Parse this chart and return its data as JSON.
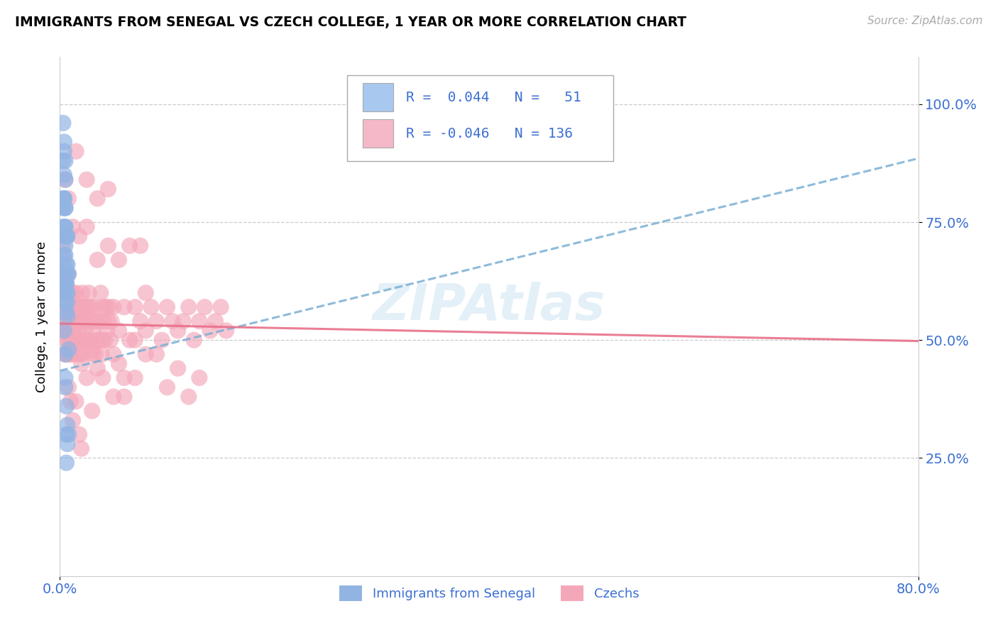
{
  "title": "IMMIGRANTS FROM SENEGAL VS CZECH COLLEGE, 1 YEAR OR MORE CORRELATION CHART",
  "source_text": "Source: ZipAtlas.com",
  "ylabel": "College, 1 year or more",
  "xticklabels": [
    "0.0%",
    "80.0%"
  ],
  "yticklabels_right": [
    "100.0%",
    "75.0%",
    "50.0%",
    "25.0%"
  ],
  "xlim": [
    0.0,
    0.8
  ],
  "ylim": [
    0.0,
    1.1
  ],
  "ytick_positions": [
    1.0,
    0.75,
    0.5,
    0.25
  ],
  "grid_yticks": [
    1.0,
    0.75,
    0.5,
    0.25
  ],
  "blue_color": "#92b4e3",
  "pink_color": "#f4a7b9",
  "trend_blue_color": "#7aafd4",
  "trend_pink_color": "#e8708a",
  "legend_color": "#3c6fd1",
  "blue_trend_x": [
    0.0,
    0.8
  ],
  "blue_trend_y": [
    0.435,
    0.885
  ],
  "pink_trend_x": [
    0.0,
    0.8
  ],
  "pink_trend_y": [
    0.535,
    0.498
  ],
  "blue_scatter": [
    [
      0.003,
      0.88
    ],
    [
      0.003,
      0.8
    ],
    [
      0.003,
      0.78
    ],
    [
      0.003,
      0.74
    ],
    [
      0.004,
      0.92
    ],
    [
      0.004,
      0.85
    ],
    [
      0.004,
      0.8
    ],
    [
      0.004,
      0.72
    ],
    [
      0.004,
      0.68
    ],
    [
      0.004,
      0.62
    ],
    [
      0.005,
      0.7
    ],
    [
      0.005,
      0.65
    ],
    [
      0.005,
      0.74
    ],
    [
      0.005,
      0.78
    ],
    [
      0.005,
      0.62
    ],
    [
      0.005,
      0.6
    ],
    [
      0.005,
      0.58
    ],
    [
      0.005,
      0.74
    ],
    [
      0.005,
      0.68
    ],
    [
      0.006,
      0.62
    ],
    [
      0.006,
      0.6
    ],
    [
      0.006,
      0.66
    ],
    [
      0.006,
      0.56
    ],
    [
      0.006,
      0.64
    ],
    [
      0.006,
      0.72
    ],
    [
      0.007,
      0.72
    ],
    [
      0.007,
      0.64
    ],
    [
      0.007,
      0.6
    ],
    [
      0.007,
      0.58
    ],
    [
      0.007,
      0.55
    ],
    [
      0.008,
      0.48
    ],
    [
      0.004,
      0.52
    ],
    [
      0.005,
      0.47
    ],
    [
      0.005,
      0.42
    ],
    [
      0.005,
      0.4
    ],
    [
      0.006,
      0.36
    ],
    [
      0.006,
      0.3
    ],
    [
      0.006,
      0.24
    ],
    [
      0.007,
      0.28
    ],
    [
      0.007,
      0.32
    ],
    [
      0.008,
      0.3
    ],
    [
      0.003,
      0.96
    ],
    [
      0.004,
      0.9
    ],
    [
      0.004,
      0.8
    ],
    [
      0.005,
      0.84
    ],
    [
      0.005,
      0.78
    ],
    [
      0.005,
      0.88
    ],
    [
      0.006,
      0.72
    ],
    [
      0.006,
      0.62
    ],
    [
      0.007,
      0.66
    ],
    [
      0.008,
      0.64
    ]
  ],
  "pink_scatter": [
    [
      0.003,
      0.7
    ],
    [
      0.003,
      0.64
    ],
    [
      0.003,
      0.6
    ],
    [
      0.004,
      0.58
    ],
    [
      0.004,
      0.72
    ],
    [
      0.004,
      0.67
    ],
    [
      0.004,
      0.62
    ],
    [
      0.005,
      0.58
    ],
    [
      0.005,
      0.52
    ],
    [
      0.005,
      0.6
    ],
    [
      0.005,
      0.64
    ],
    [
      0.005,
      0.52
    ],
    [
      0.005,
      0.47
    ],
    [
      0.006,
      0.57
    ],
    [
      0.006,
      0.5
    ],
    [
      0.006,
      0.62
    ],
    [
      0.006,
      0.54
    ],
    [
      0.006,
      0.47
    ],
    [
      0.007,
      0.6
    ],
    [
      0.007,
      0.52
    ],
    [
      0.007,
      0.57
    ],
    [
      0.007,
      0.5
    ],
    [
      0.008,
      0.64
    ],
    [
      0.008,
      0.54
    ],
    [
      0.008,
      0.6
    ],
    [
      0.008,
      0.47
    ],
    [
      0.009,
      0.57
    ],
    [
      0.009,
      0.5
    ],
    [
      0.009,
      0.6
    ],
    [
      0.009,
      0.52
    ],
    [
      0.01,
      0.54
    ],
    [
      0.01,
      0.57
    ],
    [
      0.01,
      0.47
    ],
    [
      0.011,
      0.52
    ],
    [
      0.011,
      0.57
    ],
    [
      0.011,
      0.5
    ],
    [
      0.012,
      0.54
    ],
    [
      0.012,
      0.6
    ],
    [
      0.012,
      0.47
    ],
    [
      0.013,
      0.57
    ],
    [
      0.013,
      0.52
    ],
    [
      0.014,
      0.57
    ],
    [
      0.014,
      0.5
    ],
    [
      0.014,
      0.54
    ],
    [
      0.015,
      0.6
    ],
    [
      0.015,
      0.5
    ],
    [
      0.016,
      0.57
    ],
    [
      0.016,
      0.54
    ],
    [
      0.017,
      0.47
    ],
    [
      0.017,
      0.52
    ],
    [
      0.018,
      0.57
    ],
    [
      0.018,
      0.47
    ],
    [
      0.019,
      0.54
    ],
    [
      0.019,
      0.57
    ],
    [
      0.02,
      0.5
    ],
    [
      0.02,
      0.54
    ],
    [
      0.021,
      0.6
    ],
    [
      0.021,
      0.47
    ],
    [
      0.022,
      0.57
    ],
    [
      0.022,
      0.54
    ],
    [
      0.023,
      0.5
    ],
    [
      0.023,
      0.57
    ],
    [
      0.024,
      0.52
    ],
    [
      0.025,
      0.54
    ],
    [
      0.025,
      0.5
    ],
    [
      0.026,
      0.57
    ],
    [
      0.027,
      0.6
    ],
    [
      0.028,
      0.5
    ],
    [
      0.029,
      0.57
    ],
    [
      0.03,
      0.54
    ],
    [
      0.03,
      0.47
    ],
    [
      0.031,
      0.52
    ],
    [
      0.032,
      0.57
    ],
    [
      0.033,
      0.47
    ],
    [
      0.034,
      0.54
    ],
    [
      0.035,
      0.5
    ],
    [
      0.035,
      0.44
    ],
    [
      0.036,
      0.5
    ],
    [
      0.037,
      0.54
    ],
    [
      0.038,
      0.6
    ],
    [
      0.039,
      0.47
    ],
    [
      0.04,
      0.57
    ],
    [
      0.041,
      0.54
    ],
    [
      0.042,
      0.5
    ],
    [
      0.043,
      0.57
    ],
    [
      0.044,
      0.52
    ],
    [
      0.045,
      0.54
    ],
    [
      0.046,
      0.57
    ],
    [
      0.047,
      0.5
    ],
    [
      0.048,
      0.54
    ],
    [
      0.05,
      0.57
    ],
    [
      0.05,
      0.47
    ],
    [
      0.055,
      0.52
    ],
    [
      0.06,
      0.57
    ],
    [
      0.06,
      0.42
    ],
    [
      0.065,
      0.5
    ],
    [
      0.07,
      0.57
    ],
    [
      0.07,
      0.5
    ],
    [
      0.075,
      0.54
    ],
    [
      0.08,
      0.6
    ],
    [
      0.08,
      0.47
    ],
    [
      0.085,
      0.57
    ],
    [
      0.09,
      0.54
    ],
    [
      0.095,
      0.5
    ],
    [
      0.1,
      0.57
    ],
    [
      0.105,
      0.54
    ],
    [
      0.11,
      0.52
    ],
    [
      0.115,
      0.54
    ],
    [
      0.12,
      0.57
    ],
    [
      0.125,
      0.5
    ],
    [
      0.13,
      0.54
    ],
    [
      0.135,
      0.57
    ],
    [
      0.14,
      0.52
    ],
    [
      0.145,
      0.54
    ],
    [
      0.15,
      0.57
    ],
    [
      0.155,
      0.52
    ],
    [
      0.008,
      0.4
    ],
    [
      0.01,
      0.37
    ],
    [
      0.012,
      0.33
    ],
    [
      0.015,
      0.37
    ],
    [
      0.018,
      0.3
    ],
    [
      0.02,
      0.27
    ],
    [
      0.025,
      0.42
    ],
    [
      0.03,
      0.35
    ],
    [
      0.04,
      0.42
    ],
    [
      0.05,
      0.38
    ],
    [
      0.005,
      0.84
    ],
    [
      0.008,
      0.8
    ],
    [
      0.012,
      0.74
    ],
    [
      0.018,
      0.72
    ],
    [
      0.025,
      0.74
    ],
    [
      0.035,
      0.67
    ],
    [
      0.045,
      0.7
    ],
    [
      0.055,
      0.67
    ],
    [
      0.065,
      0.7
    ],
    [
      0.075,
      0.7
    ],
    [
      0.015,
      0.9
    ],
    [
      0.025,
      0.84
    ],
    [
      0.035,
      0.8
    ],
    [
      0.045,
      0.82
    ],
    [
      0.02,
      0.45
    ],
    [
      0.03,
      0.48
    ],
    [
      0.04,
      0.5
    ],
    [
      0.055,
      0.45
    ],
    [
      0.06,
      0.38
    ],
    [
      0.07,
      0.42
    ],
    [
      0.08,
      0.52
    ],
    [
      0.09,
      0.47
    ],
    [
      0.1,
      0.4
    ],
    [
      0.11,
      0.44
    ],
    [
      0.12,
      0.38
    ],
    [
      0.13,
      0.42
    ]
  ],
  "background_color": "#ffffff",
  "grid_color": "#cccccc",
  "legend_box_blue_fill": "#a8c8f0",
  "legend_box_pink_fill": "#f4b8c8"
}
